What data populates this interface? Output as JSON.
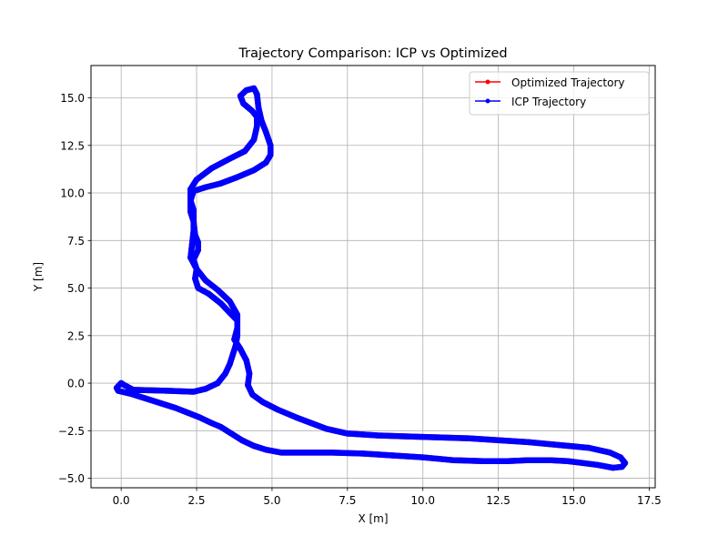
{
  "chart_data": {
    "type": "line",
    "title": "Trajectory Comparison: ICP vs Optimized",
    "xlabel": "X [m]",
    "ylabel": "Y [m]",
    "xlim": [
      -1.0,
      17.7
    ],
    "ylim": [
      -5.5,
      16.7
    ],
    "xticks": [
      0.0,
      2.5,
      5.0,
      7.5,
      10.0,
      12.5,
      15.0,
      17.5
    ],
    "xtick_labels": [
      "0.0",
      "2.5",
      "5.0",
      "7.5",
      "10.0",
      "12.5",
      "15.0",
      "17.5"
    ],
    "yticks": [
      -5.0,
      -2.5,
      0.0,
      2.5,
      5.0,
      7.5,
      10.0,
      12.5,
      15.0
    ],
    "ytick_labels": [
      "−5.0",
      "−2.5",
      "0.0",
      "2.5",
      "5.0",
      "7.5",
      "10.0",
      "12.5",
      "15.0"
    ],
    "grid": true,
    "legend_position": "top-right",
    "series": [
      {
        "name": "Optimized Trajectory",
        "color": "#ff0000",
        "points": [
          [
            0.0,
            0.0
          ],
          [
            0.1,
            -0.1
          ],
          [
            0.4,
            -0.35
          ],
          [
            1.5,
            -0.4
          ],
          [
            2.4,
            -0.45
          ],
          [
            2.8,
            -0.3
          ],
          [
            3.2,
            0.0
          ],
          [
            3.45,
            0.5
          ],
          [
            3.6,
            1.0
          ],
          [
            3.7,
            1.5
          ],
          [
            3.8,
            2.0
          ],
          [
            3.85,
            2.5
          ],
          [
            3.85,
            3.3
          ],
          [
            3.6,
            3.7
          ],
          [
            3.3,
            4.2
          ],
          [
            2.9,
            4.7
          ],
          [
            2.55,
            5.0
          ],
          [
            2.45,
            5.5
          ],
          [
            2.5,
            6.0
          ],
          [
            2.4,
            6.5
          ],
          [
            2.55,
            7.0
          ],
          [
            2.55,
            7.4
          ],
          [
            2.45,
            7.8
          ],
          [
            2.4,
            8.5
          ],
          [
            2.3,
            9.0
          ],
          [
            2.3,
            9.6
          ],
          [
            2.4,
            10.1
          ],
          [
            2.8,
            10.3
          ],
          [
            3.3,
            10.5
          ],
          [
            3.8,
            10.8
          ],
          [
            4.4,
            11.2
          ],
          [
            4.8,
            11.6
          ],
          [
            4.95,
            12.0
          ],
          [
            4.95,
            12.5
          ],
          [
            4.8,
            13.2
          ],
          [
            4.65,
            13.8
          ],
          [
            4.55,
            14.5
          ],
          [
            4.5,
            15.2
          ],
          [
            4.4,
            15.5
          ],
          [
            4.15,
            15.4
          ],
          [
            3.95,
            15.1
          ],
          [
            4.05,
            14.7
          ],
          [
            4.35,
            14.3
          ],
          [
            4.5,
            14.0
          ],
          [
            4.5,
            13.5
          ],
          [
            4.4,
            12.8
          ],
          [
            4.1,
            12.2
          ],
          [
            3.6,
            11.8
          ],
          [
            3.0,
            11.3
          ],
          [
            2.5,
            10.7
          ],
          [
            2.3,
            10.2
          ],
          [
            2.3,
            9.6
          ],
          [
            2.4,
            9.1
          ],
          [
            2.4,
            8.6
          ],
          [
            2.4,
            8.0
          ],
          [
            2.35,
            7.3
          ],
          [
            2.3,
            6.6
          ],
          [
            2.5,
            6.0
          ],
          [
            2.8,
            5.4
          ],
          [
            3.2,
            4.9
          ],
          [
            3.6,
            4.3
          ],
          [
            3.85,
            3.6
          ],
          [
            3.85,
            2.9
          ],
          [
            3.75,
            2.3
          ],
          [
            3.95,
            1.8
          ],
          [
            4.15,
            1.2
          ],
          [
            4.25,
            0.5
          ],
          [
            4.2,
            -0.1
          ],
          [
            4.35,
            -0.6
          ],
          [
            4.7,
            -1.0
          ],
          [
            5.2,
            -1.4
          ],
          [
            5.8,
            -1.8
          ],
          [
            6.3,
            -2.1
          ],
          [
            6.8,
            -2.4
          ],
          [
            7.5,
            -2.65
          ],
          [
            8.5,
            -2.75
          ],
          [
            9.5,
            -2.8
          ],
          [
            10.5,
            -2.85
          ],
          [
            11.5,
            -2.9
          ],
          [
            12.5,
            -3.0
          ],
          [
            13.5,
            -3.1
          ],
          [
            14.5,
            -3.25
          ],
          [
            15.5,
            -3.4
          ],
          [
            16.2,
            -3.65
          ],
          [
            16.55,
            -3.9
          ],
          [
            16.7,
            -4.2
          ],
          [
            16.6,
            -4.4
          ],
          [
            16.3,
            -4.45
          ],
          [
            15.8,
            -4.3
          ],
          [
            15.3,
            -4.2
          ],
          [
            14.8,
            -4.1
          ],
          [
            14.2,
            -4.05
          ],
          [
            13.5,
            -4.05
          ],
          [
            12.8,
            -4.1
          ],
          [
            12.0,
            -4.1
          ],
          [
            11.0,
            -4.05
          ],
          [
            10.0,
            -3.9
          ],
          [
            9.0,
            -3.8
          ],
          [
            8.0,
            -3.7
          ],
          [
            7.0,
            -3.65
          ],
          [
            6.0,
            -3.65
          ],
          [
            5.3,
            -3.65
          ],
          [
            4.8,
            -3.5
          ],
          [
            4.4,
            -3.3
          ],
          [
            4.0,
            -3.0
          ],
          [
            3.6,
            -2.6
          ],
          [
            3.3,
            -2.3
          ],
          [
            3.0,
            -2.1
          ],
          [
            2.6,
            -1.8
          ],
          [
            2.2,
            -1.55
          ],
          [
            1.8,
            -1.3
          ],
          [
            1.3,
            -1.05
          ],
          [
            0.8,
            -0.8
          ],
          [
            0.3,
            -0.55
          ],
          [
            -0.1,
            -0.4
          ],
          [
            -0.15,
            -0.25
          ],
          [
            0.0,
            0.0
          ]
        ]
      },
      {
        "name": "ICP Trajectory",
        "color": "#0000ff",
        "points": [
          [
            0.0,
            0.0
          ],
          [
            0.1,
            -0.1
          ],
          [
            0.4,
            -0.35
          ],
          [
            1.5,
            -0.4
          ],
          [
            2.4,
            -0.45
          ],
          [
            2.8,
            -0.3
          ],
          [
            3.2,
            0.0
          ],
          [
            3.45,
            0.5
          ],
          [
            3.6,
            1.0
          ],
          [
            3.7,
            1.5
          ],
          [
            3.8,
            2.0
          ],
          [
            3.85,
            2.5
          ],
          [
            3.85,
            3.3
          ],
          [
            3.6,
            3.7
          ],
          [
            3.3,
            4.2
          ],
          [
            2.9,
            4.7
          ],
          [
            2.55,
            5.0
          ],
          [
            2.45,
            5.5
          ],
          [
            2.5,
            6.0
          ],
          [
            2.4,
            6.5
          ],
          [
            2.55,
            7.0
          ],
          [
            2.55,
            7.4
          ],
          [
            2.45,
            7.8
          ],
          [
            2.4,
            8.5
          ],
          [
            2.3,
            9.0
          ],
          [
            2.3,
            9.6
          ],
          [
            2.4,
            10.1
          ],
          [
            2.8,
            10.3
          ],
          [
            3.3,
            10.5
          ],
          [
            3.8,
            10.8
          ],
          [
            4.4,
            11.2
          ],
          [
            4.8,
            11.6
          ],
          [
            4.95,
            12.0
          ],
          [
            4.95,
            12.5
          ],
          [
            4.8,
            13.2
          ],
          [
            4.65,
            13.8
          ],
          [
            4.55,
            14.5
          ],
          [
            4.5,
            15.2
          ],
          [
            4.4,
            15.5
          ],
          [
            4.15,
            15.4
          ],
          [
            3.95,
            15.1
          ],
          [
            4.05,
            14.7
          ],
          [
            4.35,
            14.3
          ],
          [
            4.5,
            14.0
          ],
          [
            4.5,
            13.5
          ],
          [
            4.4,
            12.8
          ],
          [
            4.1,
            12.2
          ],
          [
            3.6,
            11.8
          ],
          [
            3.0,
            11.3
          ],
          [
            2.5,
            10.7
          ],
          [
            2.3,
            10.2
          ],
          [
            2.3,
            9.6
          ],
          [
            2.4,
            9.1
          ],
          [
            2.4,
            8.6
          ],
          [
            2.4,
            8.0
          ],
          [
            2.35,
            7.3
          ],
          [
            2.3,
            6.6
          ],
          [
            2.5,
            6.0
          ],
          [
            2.8,
            5.4
          ],
          [
            3.2,
            4.9
          ],
          [
            3.6,
            4.3
          ],
          [
            3.85,
            3.6
          ],
          [
            3.85,
            2.9
          ],
          [
            3.75,
            2.3
          ],
          [
            3.95,
            1.8
          ],
          [
            4.15,
            1.2
          ],
          [
            4.25,
            0.5
          ],
          [
            4.2,
            -0.1
          ],
          [
            4.35,
            -0.6
          ],
          [
            4.7,
            -1.0
          ],
          [
            5.2,
            -1.4
          ],
          [
            5.8,
            -1.8
          ],
          [
            6.3,
            -2.1
          ],
          [
            6.8,
            -2.4
          ],
          [
            7.5,
            -2.65
          ],
          [
            8.5,
            -2.75
          ],
          [
            9.5,
            -2.8
          ],
          [
            10.5,
            -2.85
          ],
          [
            11.5,
            -2.9
          ],
          [
            12.5,
            -3.0
          ],
          [
            13.5,
            -3.1
          ],
          [
            14.5,
            -3.25
          ],
          [
            15.5,
            -3.4
          ],
          [
            16.2,
            -3.65
          ],
          [
            16.55,
            -3.9
          ],
          [
            16.7,
            -4.2
          ],
          [
            16.6,
            -4.4
          ],
          [
            16.3,
            -4.45
          ],
          [
            15.8,
            -4.3
          ],
          [
            15.3,
            -4.2
          ],
          [
            14.8,
            -4.1
          ],
          [
            14.2,
            -4.05
          ],
          [
            13.5,
            -4.05
          ],
          [
            12.8,
            -4.1
          ],
          [
            12.0,
            -4.1
          ],
          [
            11.0,
            -4.05
          ],
          [
            10.0,
            -3.9
          ],
          [
            9.0,
            -3.8
          ],
          [
            8.0,
            -3.7
          ],
          [
            7.0,
            -3.65
          ],
          [
            6.0,
            -3.65
          ],
          [
            5.3,
            -3.65
          ],
          [
            4.8,
            -3.5
          ],
          [
            4.4,
            -3.3
          ],
          [
            4.0,
            -3.0
          ],
          [
            3.6,
            -2.6
          ],
          [
            3.3,
            -2.3
          ],
          [
            3.0,
            -2.1
          ],
          [
            2.6,
            -1.8
          ],
          [
            2.2,
            -1.55
          ],
          [
            1.8,
            -1.3
          ],
          [
            1.3,
            -1.05
          ],
          [
            0.8,
            -0.8
          ],
          [
            0.3,
            -0.55
          ],
          [
            -0.1,
            -0.4
          ],
          [
            -0.15,
            -0.25
          ],
          [
            0.0,
            0.0
          ]
        ]
      }
    ]
  }
}
